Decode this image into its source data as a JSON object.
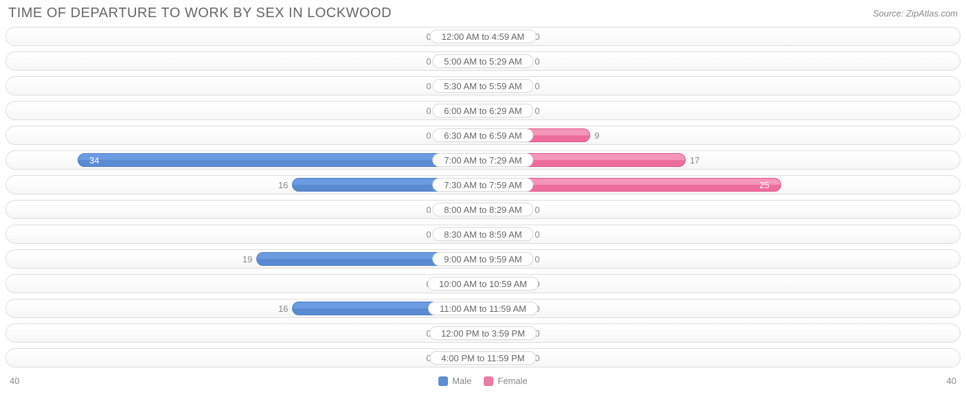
{
  "title": "TIME OF DEPARTURE TO WORK BY SEX IN LOCKWOOD",
  "source": "Source: ZipAtlas.com",
  "chart": {
    "type": "diverging-bar",
    "axis_max": 40,
    "axis_left_label": "40",
    "axis_right_label": "40",
    "min_bar_pct": 10,
    "background_color": "#ffffff",
    "row_border_color": "#dddddd",
    "label_text_color": "#666666",
    "value_text_color": "#888888",
    "series": {
      "male": {
        "label": "Male",
        "fill": "#6b9be0",
        "fill_dark": "#5a8ad1",
        "border": "#4d7fc9",
        "swatch": "#5f8dd3"
      },
      "female": {
        "label": "Female",
        "fill": "#f497b9",
        "fill_dark": "#ec6d9c",
        "border": "#e15288",
        "swatch": "#ed7aa4"
      }
    },
    "rows": [
      {
        "label": "12:00 AM to 4:59 AM",
        "male": 0,
        "female": 0
      },
      {
        "label": "5:00 AM to 5:29 AM",
        "male": 0,
        "female": 0
      },
      {
        "label": "5:30 AM to 5:59 AM",
        "male": 0,
        "female": 0
      },
      {
        "label": "6:00 AM to 6:29 AM",
        "male": 0,
        "female": 0
      },
      {
        "label": "6:30 AM to 6:59 AM",
        "male": 0,
        "female": 9
      },
      {
        "label": "7:00 AM to 7:29 AM",
        "male": 34,
        "female": 17
      },
      {
        "label": "7:30 AM to 7:59 AM",
        "male": 16,
        "female": 25
      },
      {
        "label": "8:00 AM to 8:29 AM",
        "male": 0,
        "female": 0
      },
      {
        "label": "8:30 AM to 8:59 AM",
        "male": 0,
        "female": 0
      },
      {
        "label": "9:00 AM to 9:59 AM",
        "male": 19,
        "female": 0
      },
      {
        "label": "10:00 AM to 10:59 AM",
        "male": 0,
        "female": 0
      },
      {
        "label": "11:00 AM to 11:59 AM",
        "male": 16,
        "female": 0
      },
      {
        "label": "12:00 PM to 3:59 PM",
        "male": 0,
        "female": 0
      },
      {
        "label": "4:00 PM to 11:59 PM",
        "male": 0,
        "female": 0
      }
    ]
  }
}
